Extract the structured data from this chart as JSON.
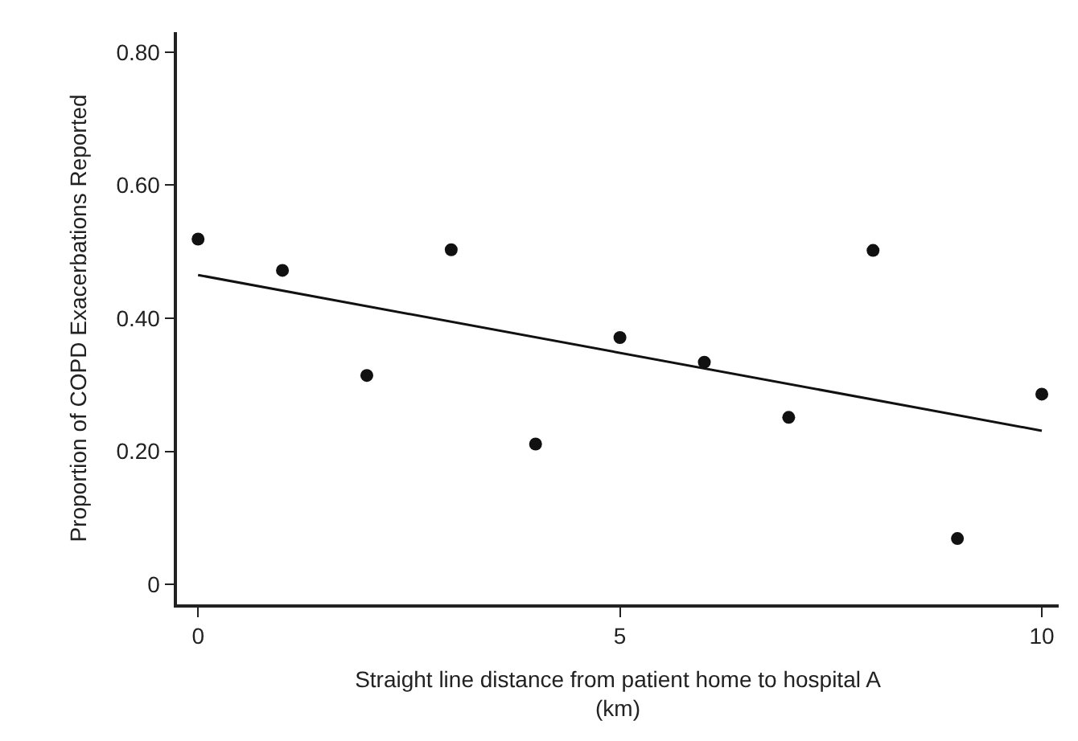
{
  "chart_data": {
    "type": "scatter",
    "xlabel": "Straight line distance from patient home to hospital A\n(km)",
    "ylabel": "Proportion of COPD Exacerbations Reported",
    "x": [
      0,
      1,
      2,
      3,
      4,
      5,
      6,
      7,
      8,
      9,
      10
    ],
    "series": [
      {
        "color": "#111111",
        "marker": "circle",
        "values": [
          0.519,
          0.472,
          0.314,
          0.503,
          0.211,
          0.371,
          0.334,
          0.251,
          0.502,
          0.069,
          0.286
        ]
      },
      {
        "type": "line",
        "color": "#111111",
        "marker": "none",
        "x": [
          0,
          10
        ],
        "values": [
          0.465,
          0.231
        ]
      }
    ],
    "xlim": [
      -0.25,
      10.2
    ],
    "xticks": [
      0,
      5,
      10
    ],
    "ylim": [
      -0.03,
      0.83
    ],
    "yticks": [
      0,
      {
        "value": 0.2,
        "label": "0.20"
      },
      {
        "value": 0.4,
        "label": "0.40"
      },
      {
        "value": 0.6,
        "label": "0.60"
      },
      {
        "value": 0.8,
        "label": "0.80"
      }
    ]
  }
}
